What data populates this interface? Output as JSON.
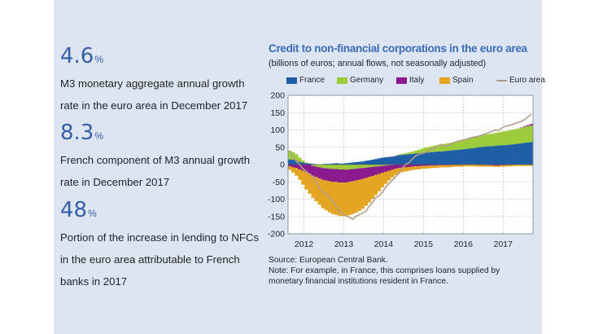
{
  "stats": [
    {
      "value": "4.6",
      "unit": "%",
      "lines": [
        "M3 monetary aggregate annual growth",
        "rate in the euro area in December 2017"
      ]
    },
    {
      "value": "8.3",
      "unit": "%",
      "lines": [
        "French component of M3 annual growth",
        "rate in December 2017"
      ]
    },
    {
      "value": "48",
      "unit": "%",
      "lines": [
        "Portion of the increase in lending to NFCs",
        "in the euro area attributable to French",
        "banks in 2017"
      ]
    }
  ],
  "colors": {
    "France": "#1f5fa6",
    "Germany": "#9ccb3b",
    "Italy": "#8b1a8e",
    "Spain": "#e3a522",
    "EuroArea": "#b39b8a",
    "panel": "#dde4f2"
  },
  "chart_data": {
    "type": "bar",
    "title": "Credit to non-financial corporations in the euro area",
    "subtitle": "(billions of euros; annual flows, not seasonally adjusted)",
    "ylim": [
      -200,
      200
    ],
    "yticks": [
      200,
      150,
      100,
      50,
      0,
      -50,
      -100,
      -150,
      -200
    ],
    "xticks": [
      "2012",
      "2013",
      "2014",
      "2015",
      "2016",
      "2017"
    ],
    "x_start": 2011.6,
    "x_end": 2017.75,
    "legend": [
      "France",
      "Germany",
      "Italy",
      "Spain",
      "Euro area"
    ],
    "series": [
      {
        "name": "France",
        "type": "bar",
        "values": [
          15,
          14,
          12,
          8,
          6,
          4,
          3,
          2,
          1,
          0,
          1,
          2,
          2,
          3,
          4,
          3,
          3,
          4,
          5,
          6,
          7,
          8,
          9,
          11,
          12,
          14,
          16,
          18,
          20,
          21,
          22,
          23,
          25,
          27,
          28,
          29,
          30,
          31,
          32,
          33,
          34,
          35,
          35,
          36,
          37,
          38,
          38,
          39,
          40,
          41,
          42,
          43,
          44,
          45,
          46,
          47,
          48,
          50,
          51,
          52,
          53,
          53,
          54,
          55,
          56,
          56,
          57,
          58,
          59,
          60,
          61,
          63,
          64,
          65
        ]
      },
      {
        "name": "Germany",
        "type": "bar",
        "values": [
          25,
          22,
          18,
          12,
          6,
          2,
          0,
          -4,
          -6,
          -8,
          -10,
          -11,
          -12,
          -13,
          -13,
          -14,
          -14,
          -15,
          -14,
          -13,
          -12,
          -11,
          -10,
          -9,
          -8,
          -7,
          -6,
          -5,
          -4,
          -3,
          -2,
          -1,
          0,
          2,
          3,
          4,
          5,
          6,
          8,
          10,
          12,
          14,
          16,
          17,
          18,
          19,
          20,
          21,
          22,
          23,
          24,
          25,
          27,
          28,
          29,
          30,
          31,
          32,
          33,
          34,
          35,
          36,
          37,
          38,
          39,
          40,
          41,
          42,
          43,
          44,
          45,
          46,
          47,
          48
        ]
      },
      {
        "name": "Italy",
        "type": "bar",
        "values": [
          -5,
          -8,
          -10,
          -14,
          -18,
          -22,
          -26,
          -28,
          -30,
          -32,
          -34,
          -35,
          -36,
          -37,
          -37,
          -38,
          -38,
          -37,
          -36,
          -35,
          -34,
          -33,
          -32,
          -30,
          -28,
          -26,
          -24,
          -22,
          -20,
          -18,
          -16,
          -14,
          -12,
          -10,
          -9,
          -8,
          -7,
          -6,
          -5,
          -5,
          -4,
          -4,
          -3,
          -3,
          -3,
          -2,
          -2,
          -2,
          -2,
          -1,
          -1,
          -1,
          -1,
          0,
          0,
          0,
          0,
          -1,
          -1,
          -1,
          -2,
          -2,
          -3,
          -3,
          -2,
          -2,
          -1,
          -1,
          0,
          0,
          1,
          2,
          3,
          4
        ]
      },
      {
        "name": "Spain",
        "type": "bar",
        "values": [
          -10,
          -15,
          -22,
          -30,
          -40,
          -50,
          -58,
          -64,
          -70,
          -76,
          -82,
          -86,
          -90,
          -93,
          -95,
          -96,
          -97,
          -97,
          -96,
          -95,
          -93,
          -90,
          -86,
          -80,
          -74,
          -66,
          -58,
          -50,
          -42,
          -35,
          -28,
          -22,
          -18,
          -15,
          -13,
          -12,
          -11,
          -10,
          -9,
          -9,
          -8,
          -8,
          -8,
          -7,
          -7,
          -7,
          -6,
          -6,
          -6,
          -6,
          -5,
          -5,
          -5,
          -5,
          -5,
          -5,
          -5,
          -5,
          -5,
          -5,
          -4,
          -4,
          -4,
          -4,
          -4,
          -4,
          -4,
          -4,
          -4,
          -4,
          -4,
          -4,
          -4,
          -4
        ]
      },
      {
        "name": "Euro area",
        "type": "line",
        "values": [
          40,
          22,
          10,
          0,
          -12,
          -20,
          -28,
          -35,
          -50,
          -70,
          -80,
          -85,
          -95,
          -105,
          -120,
          -135,
          -142,
          -148,
          -152,
          -158,
          -150,
          -145,
          -140,
          -135,
          -120,
          -110,
          -95,
          -90,
          -80,
          -65,
          -55,
          -45,
          -35,
          -25,
          -10,
          0,
          5,
          15,
          25,
          30,
          32,
          35,
          40,
          45,
          50,
          55,
          58,
          52,
          55,
          60,
          65,
          68,
          70,
          72,
          75,
          78,
          80,
          82,
          85,
          88,
          92,
          95,
          100,
          98,
          105,
          110,
          112,
          115,
          118,
          122,
          125,
          130,
          138,
          145
        ]
      }
    ]
  },
  "notes": [
    "Source: European Central Bank.",
    "Note: For example, in France, this comprises loans supplied by",
    "monetary financial institutions resident in France."
  ]
}
